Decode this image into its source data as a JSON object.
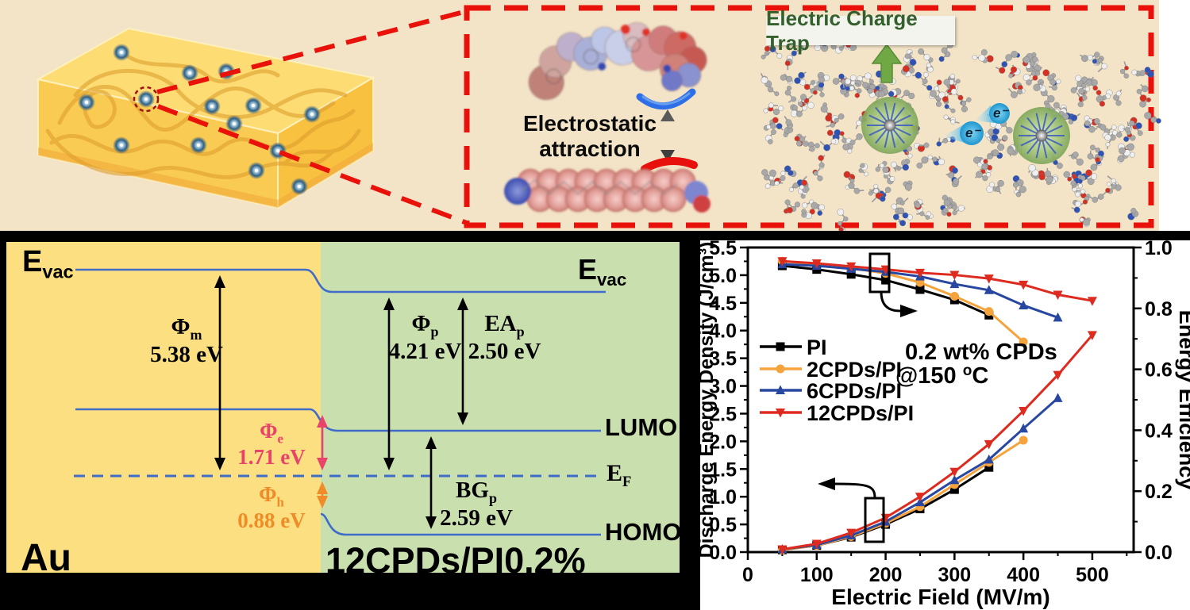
{
  "top_panel": {
    "electrostatic_label_line1": "Electrostatic",
    "electrostatic_label_line2": "attraction",
    "charge_trap_label": "Electric Charge Trap",
    "electron_label": "e⁻",
    "colors": {
      "background_tan": "#F3E3C7",
      "highlight_red": "#E8120B",
      "trap_text_green": "#33602C",
      "trap_arrow_green": "#6FA845",
      "electron_cyan": "#2BA8DC"
    }
  },
  "band_diagram": {
    "evac": {
      "sym": "E",
      "sub": "vac"
    },
    "phi_m": {
      "sym": "Φ",
      "sub": "m",
      "value": "5.38 eV"
    },
    "phi_p": {
      "sym": "Φ",
      "sub": "p",
      "value": "4.21 eV"
    },
    "ea_p": {
      "sym": "EA",
      "sub": "p",
      "value": "2.50 eV"
    },
    "phi_e": {
      "sym": "Φ",
      "sub": "e",
      "value": "1.71 eV"
    },
    "phi_h": {
      "sym": "Φ",
      "sub": "h",
      "value": "0.88 eV"
    },
    "bg_p": {
      "sym": "BG",
      "sub": "p",
      "value": "2.59 eV"
    },
    "e_f": {
      "sym": "E",
      "sub": "F"
    },
    "lumo": "LUMO",
    "homo": "HOMO",
    "metal": "Au",
    "polymer": "12CPDs/PI0.2%",
    "colors": {
      "metal_bg": "#FBDF80",
      "polymer_bg": "#C9DFAE",
      "level_line_blue": "#3E6CC8",
      "phi_e_pink": "#E8436B",
      "phi_h_orange": "#F08C28"
    }
  },
  "chart_data": {
    "type": "line",
    "xlabel": "Electric Field (MV/m)",
    "ylabel_left": "Discharge Energy Density (J/cm³)",
    "ylabel_right": "Energy Efficiency",
    "xlim": [
      0,
      560
    ],
    "ylim_left": [
      0,
      5.5
    ],
    "ylim_right": [
      0,
      1.0
    ],
    "x_major_ticks": [
      0,
      100,
      200,
      300,
      400,
      500
    ],
    "x_minor_ticks": [
      50,
      150,
      250,
      350,
      450,
      550
    ],
    "y_left_major_ticks": [
      0.0,
      0.5,
      1.0,
      1.5,
      2.0,
      2.5,
      3.0,
      3.5,
      4.0,
      4.5,
      5.0,
      5.5
    ],
    "y_right_major_ticks": [
      0.0,
      0.2,
      0.4,
      0.6,
      0.8,
      1.0
    ],
    "y_right_minor_ticks": [
      0.1,
      0.3,
      0.5,
      0.7,
      0.9
    ],
    "grid": false,
    "legend_position": "middle-left",
    "annotation": [
      "0.2 wt% CPDs",
      "@150 °C"
    ],
    "series": [
      {
        "name": "PI",
        "color": "#000000",
        "marker": "square",
        "x": [
          50,
          100,
          150,
          200,
          250,
          300,
          350
        ],
        "discharge_energy_density": [
          0.04,
          0.12,
          0.27,
          0.5,
          0.78,
          1.13,
          1.53
        ],
        "energy_efficiency": [
          0.94,
          0.928,
          0.912,
          0.893,
          0.862,
          0.828,
          0.778
        ]
      },
      {
        "name": "2CPDs/PI",
        "color": "#F5A33C",
        "marker": "circle",
        "x": [
          50,
          100,
          150,
          200,
          250,
          300,
          350,
          400
        ],
        "discharge_energy_density": [
          0.04,
          0.12,
          0.28,
          0.52,
          0.82,
          1.22,
          1.62,
          2.02
        ],
        "energy_efficiency": [
          0.955,
          0.945,
          0.932,
          0.915,
          0.885,
          0.84,
          0.79,
          0.69
        ]
      },
      {
        "name": "6CPDs/PI",
        "color": "#2847A0",
        "marker": "triangle-up",
        "x": [
          50,
          100,
          150,
          200,
          250,
          300,
          350,
          400,
          450
        ],
        "discharge_energy_density": [
          0.05,
          0.13,
          0.3,
          0.55,
          0.9,
          1.3,
          1.67,
          2.23,
          2.78
        ],
        "energy_efficiency": [
          0.945,
          0.94,
          0.93,
          0.92,
          0.905,
          0.88,
          0.86,
          0.81,
          0.77
        ]
      },
      {
        "name": "12CPDs/PI",
        "color": "#DE2B20",
        "marker": "triangle-down",
        "x": [
          50,
          100,
          150,
          200,
          250,
          300,
          350,
          400,
          450,
          500
        ],
        "discharge_energy_density": [
          0.05,
          0.15,
          0.35,
          0.62,
          1.0,
          1.45,
          1.95,
          2.55,
          3.2,
          3.92
        ],
        "energy_efficiency": [
          0.955,
          0.948,
          0.938,
          0.928,
          0.917,
          0.91,
          0.898,
          0.878,
          0.845,
          0.825
        ]
      }
    ]
  }
}
